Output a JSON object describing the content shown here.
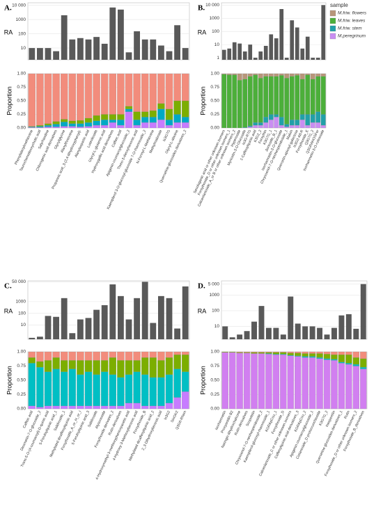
{
  "chart_data": [
    {
      "type": "bar",
      "title": "A.",
      "y_label": "RA",
      "log_scale": true,
      "color": "#595959",
      "grid": true,
      "values": [
        10,
        10,
        10,
        6,
        2000,
        40,
        50,
        40,
        60,
        20,
        7000,
        5000,
        5,
        150,
        40,
        40,
        15,
        6,
        400,
        10
      ],
      "ylim": [
        1.5,
        15000
      ],
      "yticks": [
        10,
        100,
        1000,
        {
          "value": 10000,
          "label": "10 000"
        }
      ]
    },
    {
      "type": "stacked_bar",
      "y_label": "Proportion",
      "grid": true,
      "categories": [
        "Phenylalanylmethionine",
        "Taurochenodeoxycholic acid",
        "Salyrhasdine",
        "Chlorogenic acid derivatives",
        "Glycylglycine",
        "Alanylthreonine",
        "Propanoic acid_3-(2,4-dihydroxyphenyl)-",
        "Alanylaspartic acid",
        "Luteolioside",
        "Glycyl-L-glutamic acid",
        "Hydroxygallic acid derivatives",
        "Caffeic acid",
        "Apigenin coumaroylglucoside_2",
        "Threo-3-deoxyhexonic acid",
        "Kaempferol 3-O-glucosyl-glucoside 7-O-rhamnoside_2",
        "N-Formyl-L-Methionine",
        "Methylmalonate",
        "Is3G7G",
        "Glycyl-L-alanine",
        "Quercetine-glucosides derivatives_2"
      ],
      "series": [
        {
          "name": "M.friw. flowers",
          "color": "#f28c7c",
          "values": [
            0.97,
            0.95,
            0.92,
            0.88,
            0.84,
            0.87,
            0.86,
            0.82,
            0.77,
            0.75,
            0.75,
            0.75,
            0.6,
            0.7,
            0.7,
            0.68,
            0.55,
            0.65,
            0.5,
            0.5
          ]
        },
        {
          "name": "M.friw. leaves",
          "color": "#7cae00",
          "values": [
            0.01,
            0.02,
            0.03,
            0.05,
            0.05,
            0.05,
            0.06,
            0.08,
            0.1,
            0.1,
            0.1,
            0.1,
            0.05,
            0.15,
            0.1,
            0.12,
            0.1,
            0.2,
            0.25,
            0.3
          ]
        },
        {
          "name": "M.friw. stem",
          "color": "#00a9c4",
          "values": [
            0.01,
            0.02,
            0.03,
            0.05,
            0.08,
            0.05,
            0.06,
            0.07,
            0.08,
            0.1,
            0.05,
            0.1,
            0.05,
            0.1,
            0.1,
            0.1,
            0.2,
            0.1,
            0.15,
            0.1
          ]
        },
        {
          "name": "M.peregrinum",
          "color": "#c77cff",
          "values": [
            0.01,
            0.01,
            0.02,
            0.02,
            0.03,
            0.03,
            0.02,
            0.03,
            0.05,
            0.05,
            0.1,
            0.05,
            0.3,
            0.05,
            0.1,
            0.1,
            0.15,
            0.05,
            0.1,
            0.1
          ]
        }
      ],
      "ylim": [
        0,
        1
      ],
      "yticks": [
        {
          "value": 0,
          "label": "0.00"
        },
        {
          "value": 0.25,
          "label": "0.25"
        },
        {
          "value": 0.5,
          "label": "0.50"
        },
        {
          "value": 0.75,
          "label": "0.75"
        },
        {
          "value": 1,
          "label": "1.00"
        }
      ]
    },
    {
      "type": "bar",
      "title": "B.",
      "y_label": "RA",
      "log_scale": true,
      "color": "#595959",
      "grid": true,
      "values": [
        4,
        5,
        15,
        12,
        3,
        10,
        1,
        3,
        8,
        60,
        30,
        5000,
        1,
        700,
        200,
        5,
        40,
        1,
        1,
        10000
      ],
      "ylim": [
        0.7,
        15000
      ],
      "yticks": [
        1,
        10,
        100,
        1000,
        {
          "value": 10000,
          "label": "10 000"
        }
      ]
    },
    {
      "type": "stacked_bar",
      "y_label": "Proportion",
      "grid": true,
      "legend_title": "sample",
      "categories": [
        "Secologanic acid or other unknown isomers",
        "Forsythoside_D or other unknown isomers_1",
        "Calceolarioside_A_or B or other unknown isomers_2",
        "Hyperoside",
        "Myricetin-3-O-Glucoside",
        "Is3G-R7G",
        "1-Caffeoylquinic acid",
        "K3G2_2",
        "Forsythin",
        "K3G7G_1",
        "Jionoside_B_1",
        "Isorhamnetin-3-O-glucoside",
        "Chrysoeriol-7-O-neohesperidoside_1",
        "Malvin",
        "Quercetin-apiosyl-galactose",
        "Is3G2-A8-R",
        "Forsythoside_E",
        "Q3G7G_2",
        "Q3GRAHOSFer",
        "Isorhamnetin-3-O-rutinoside"
      ],
      "series": [
        {
          "name": "M.friw. flowers",
          "color": "#b8967a",
          "values": [
            0.01,
            0.02,
            0.02,
            0.12,
            0.1,
            0.05,
            0.02,
            0.08,
            0.05,
            0.05,
            0.05,
            0.03,
            0.08,
            0.05,
            0.03,
            0.1,
            0.02,
            0.1,
            0.05,
            0.05
          ]
        },
        {
          "name": "M.friw. leaves",
          "color": "#4caf3a",
          "values": [
            0.99,
            0.98,
            0.98,
            0.88,
            0.89,
            0.91,
            0.88,
            0.82,
            0.75,
            0.7,
            0.7,
            0.77,
            0.85,
            0.8,
            0.82,
            0.65,
            0.73,
            0.65,
            0.65,
            0.7
          ]
        },
        {
          "name": "M.friw. stem",
          "color": "#21a0a8",
          "values": [
            0,
            0,
            0,
            0,
            0.01,
            0.02,
            0.05,
            0.05,
            0.1,
            0.1,
            0.05,
            0.15,
            0.05,
            0.1,
            0.1,
            0.1,
            0.2,
            0.15,
            0.2,
            0.2
          ]
        },
        {
          "name": "M.peregrinum",
          "color": "#c98ef2",
          "values": [
            0,
            0,
            0,
            0,
            0,
            0.02,
            0.05,
            0.05,
            0.1,
            0.15,
            0.2,
            0.05,
            0.02,
            0.05,
            0.05,
            0.15,
            0.05,
            0.1,
            0.1,
            0.05
          ]
        }
      ],
      "ylim": [
        0,
        1
      ],
      "yticks": [
        {
          "value": 0,
          "label": "0.00"
        },
        {
          "value": 0.25,
          "label": "0.25"
        },
        {
          "value": 0.5,
          "label": "0.50"
        },
        {
          "value": 0.75,
          "label": "0.75"
        },
        {
          "value": 1,
          "label": "1.00"
        }
      ]
    },
    {
      "type": "bar",
      "title": "C.",
      "y_label": "RA",
      "log_scale": true,
      "color": "#595959",
      "grid": true,
      "values": [
        0.8,
        1,
        60,
        50,
        2000,
        2,
        30,
        40,
        200,
        500,
        30000,
        3000,
        30,
        2000,
        50000,
        15,
        3000,
        2000,
        5,
        20000
      ],
      "ylim": [
        0.6,
        60000
      ],
      "yticks": [
        10,
        100,
        1000,
        {
          "value": 50000,
          "label": "50 000"
        }
      ]
    },
    {
      "type": "stacked_bar",
      "y_label": "Proportion",
      "grid": true,
      "categories": [
        "Caffeic acid",
        "Diosmetin-7-O-glucoside_2",
        "Trans-5-O-(4-coumaroyl)-D-quinic acid",
        "5-Feruloylquinic acid_1",
        "Salidroside_1",
        "Methylated dicaffeoylquinic acid",
        "Forsythoside_A_or_H_or_I",
        "5-Feruloylquinic acid_3",
        "Salidroside",
        "Alysonoside",
        "Forsythoside derivates_2",
        "Rutin derivatives",
        "4-Hydroxymethyl-3-methoxyphenoxyacetic acid",
        "4-Hydroxy-3-Methoxybenzoic acid",
        "Forsythoside_B",
        "Methylated dicaffeoylquinic acid_2",
        "2_3-Dihydroxybenzoic acid",
        "Is3G2",
        "SinGlc2",
        "Q3G6-Rham"
      ],
      "series": [
        {
          "name": "M.friw. flowers",
          "color": "#f28c7c",
          "values": [
            0.1,
            0.17,
            0.15,
            0.1,
            0.15,
            0.15,
            0.15,
            0.15,
            0.15,
            0.15,
            0.1,
            0.15,
            0.15,
            0.15,
            0.1,
            0.1,
            0.15,
            0.1,
            0.05,
            0.05
          ]
        },
        {
          "name": "M.friw. leaves",
          "color": "#7cae00",
          "values": [
            0.1,
            0.1,
            0.2,
            0.2,
            0.2,
            0.15,
            0.25,
            0.2,
            0.25,
            0.2,
            0.3,
            0.3,
            0.25,
            0.2,
            0.3,
            0.35,
            0.3,
            0.3,
            0.25,
            0.3
          ]
        },
        {
          "name": "M.friw. stem",
          "color": "#00bfc4",
          "values": [
            0.75,
            0.7,
            0.6,
            0.65,
            0.6,
            0.65,
            0.55,
            0.6,
            0.55,
            0.6,
            0.55,
            0.5,
            0.5,
            0.55,
            0.55,
            0.5,
            0.5,
            0.5,
            0.5,
            0.35
          ]
        },
        {
          "name": "M.peregrinum",
          "color": "#c77cff",
          "values": [
            0.05,
            0.03,
            0.05,
            0.05,
            0.05,
            0.05,
            0.05,
            0.05,
            0.05,
            0.05,
            0.05,
            0.05,
            0.1,
            0.1,
            0.05,
            0.05,
            0.05,
            0.1,
            0.2,
            0.3
          ]
        }
      ],
      "ylim": [
        0,
        1
      ],
      "yticks": [
        {
          "value": 0,
          "label": "0.00"
        },
        {
          "value": 0.25,
          "label": "0.25"
        },
        {
          "value": 0.5,
          "label": "0.50"
        },
        {
          "value": 0.75,
          "label": "0.75"
        },
        {
          "value": 1,
          "label": "1.00"
        }
      ]
    },
    {
      "type": "bar",
      "title": "D.",
      "y_label": "RA",
      "log_scale": true,
      "color": "#595959",
      "grid": true,
      "values": [
        10,
        2,
        3,
        5,
        20,
        200,
        8,
        8,
        3,
        800,
        15,
        10,
        10,
        8,
        3,
        8,
        50,
        60,
        7,
        5000
      ],
      "ylim": [
        1.5,
        8000
      ],
      "yticks": [
        10,
        100,
        1000,
        {
          "value": 5000,
          "label": "5 000"
        }
      ]
    },
    {
      "type": "stacked_bar",
      "y_label": "Proportion",
      "grid": true,
      "categories": [
        "Isorhamnetin",
        "Procyanidin B2",
        "Naringin dihydrochalcone",
        "Rutin derivatives",
        "Scopoletin",
        "Chrysoeriol-7-O-neohesperidoside_2",
        "Kaempferol-glucosyl-rhamnoside_1",
        "KGRApCou_1",
        "Forsythoside_D",
        "Calceolarioside_C or other unknown isomers",
        "Caffeoylquinic acid derivatives_3",
        "KGRApCou_2",
        "Apigenin coumaroylglucoside_1",
        "Cistanoside_D protocrunchioside",
        "K3G7G_2",
        "Hesperetin",
        "Quercetine glucosides derivatives_1",
        "Rutin",
        "Forsythoside_D or other unknown isomers_2",
        "Forsythoside_B_derivatives"
      ],
      "series": [
        {
          "name": "M.friw. flowers",
          "color": "#f28c7c",
          "values": [
            0,
            0,
            0.01,
            0.01,
            0.01,
            0.01,
            0.01,
            0.01,
            0.01,
            0.02,
            0.02,
            0.03,
            0.03,
            0.03,
            0.04,
            0.05,
            0.05,
            0.05,
            0.1,
            0.12
          ]
        },
        {
          "name": "M.friw. leaves",
          "color": "#7cae00",
          "values": [
            0.01,
            0.01,
            0.01,
            0.01,
            0.02,
            0.02,
            0.02,
            0.03,
            0.03,
            0.04,
            0.05,
            0.05,
            0.05,
            0.07,
            0.08,
            0.08,
            0.13,
            0.15,
            0.12,
            0.15
          ]
        },
        {
          "name": "M.friw. stem",
          "color": "#00bfc4",
          "values": [
            0,
            0,
            0,
            0,
            0,
            0,
            0.01,
            0.01,
            0.01,
            0.01,
            0.01,
            0.02,
            0.02,
            0.02,
            0.02,
            0.02,
            0.02,
            0.02,
            0.03,
            0.03
          ]
        },
        {
          "name": "M.peregrinum",
          "color": "#d17ff0",
          "values": [
            0.99,
            0.99,
            0.98,
            0.98,
            0.97,
            0.97,
            0.96,
            0.95,
            0.95,
            0.93,
            0.92,
            0.9,
            0.9,
            0.88,
            0.86,
            0.85,
            0.8,
            0.78,
            0.75,
            0.7
          ]
        }
      ],
      "ylim": [
        0,
        1
      ],
      "yticks": [
        {
          "value": 0,
          "label": "0.00"
        },
        {
          "value": 0.25,
          "label": "0.25"
        },
        {
          "value": 0.5,
          "label": "0.50"
        },
        {
          "value": 0.75,
          "label": "0.75"
        },
        {
          "value": 1,
          "label": "1.00"
        }
      ]
    }
  ]
}
